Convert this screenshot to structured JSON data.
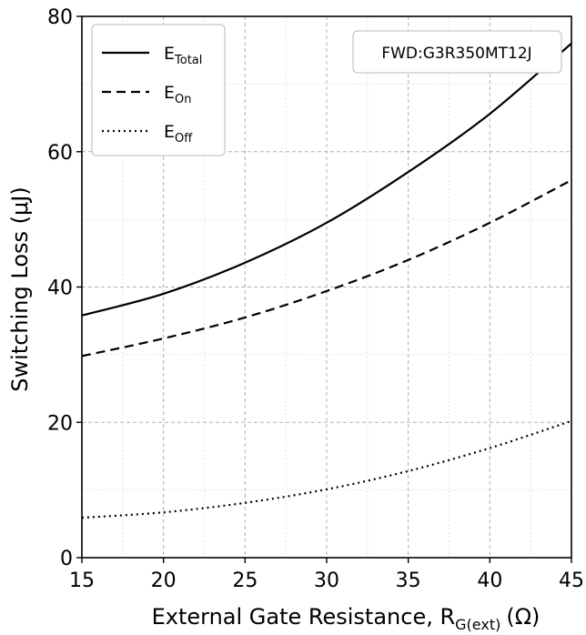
{
  "chart_data": {
    "type": "line",
    "xlabel": "External Gate Resistance, R",
    "xlabel_sub": "G(ext)",
    "xlabel_unit": "(Ω)",
    "ylabel": "Switching Loss (μJ)",
    "xlim": [
      15,
      45
    ],
    "ylim": [
      0,
      80
    ],
    "xticks": [
      15,
      20,
      25,
      30,
      35,
      40,
      45
    ],
    "yticks": [
      0,
      20,
      40,
      60,
      80
    ],
    "grid": true,
    "legend_position": "top-left",
    "annotation": "FWD:G3R350MT12J",
    "x": [
      15,
      20,
      25,
      30,
      35,
      40,
      45
    ],
    "series": [
      {
        "name": "E",
        "sub": "Total",
        "style": "solid",
        "values": [
          35.8,
          39.0,
          43.6,
          49.5,
          57.0,
          65.6,
          76.0
        ]
      },
      {
        "name": "E",
        "sub": "On",
        "style": "dashed",
        "values": [
          29.8,
          32.4,
          35.5,
          39.4,
          44.0,
          49.5,
          55.8
        ]
      },
      {
        "name": "E",
        "sub": "Off",
        "style": "dotted",
        "values": [
          5.9,
          6.7,
          8.1,
          10.1,
          12.8,
          16.2,
          20.2
        ]
      }
    ]
  }
}
